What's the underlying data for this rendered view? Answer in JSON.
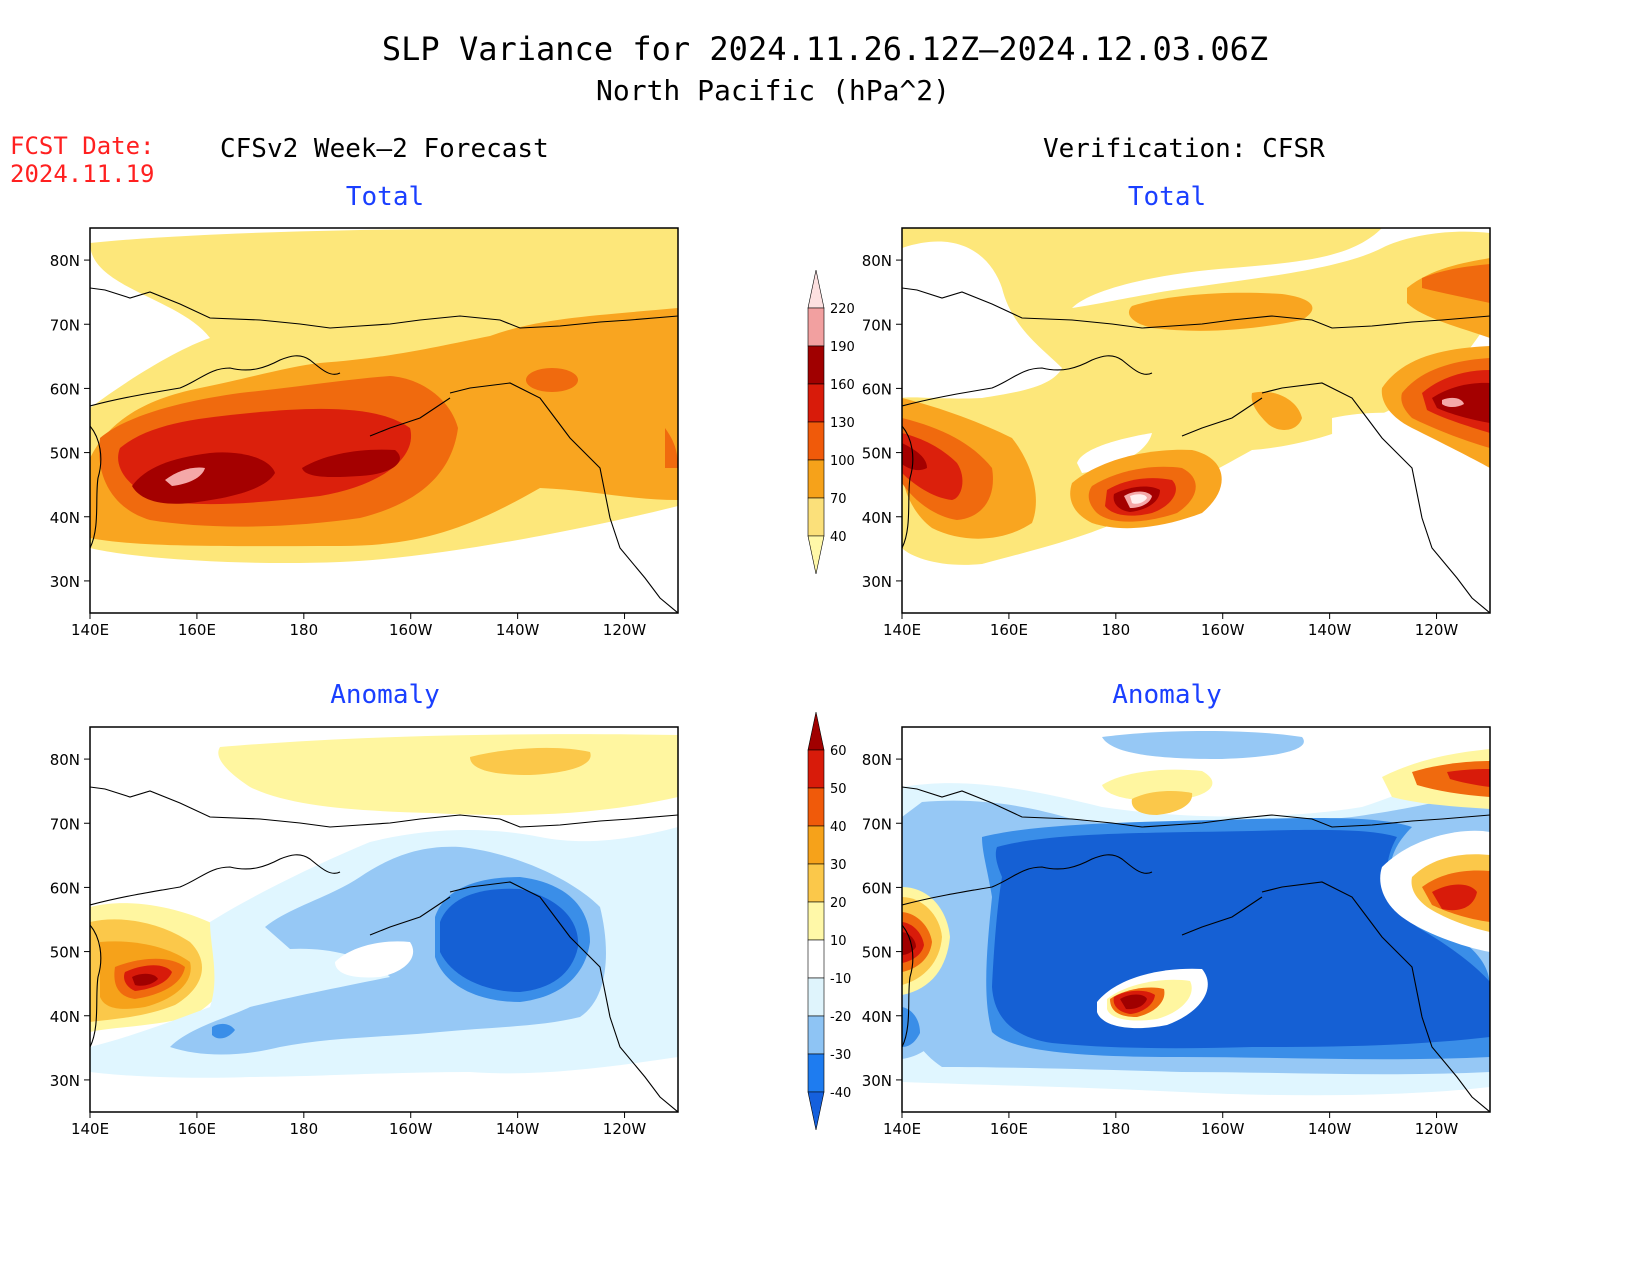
{
  "header": {
    "title": "SLP Variance for 2024.11.26.12Z–2024.12.03.06Z",
    "subtitle": "North Pacific (hPa^2)",
    "fcst_label": "FCST Date:",
    "fcst_date": "2024.11.19"
  },
  "columns": {
    "left": "CFSv2 Week–2 Forecast",
    "right": "Verification: CFSR"
  },
  "panels": {
    "total_label": "Total",
    "anomaly_label": "Anomaly"
  },
  "axes": {
    "lat_labels": [
      "80N",
      "70N",
      "60N",
      "50N",
      "40N",
      "30N"
    ],
    "lon_labels": [
      "140E",
      "160E",
      "180",
      "160W",
      "140W",
      "120W"
    ],
    "lat_range": [
      25,
      85
    ],
    "lon_range_east": [
      140,
      250
    ]
  },
  "colorbar_total": {
    "levels": [
      "40",
      "70",
      "100",
      "130",
      "160",
      "190",
      "220"
    ],
    "colors": [
      "#fff8a8",
      "#fbe07a",
      "#f6a21a",
      "#f05a0a",
      "#d81b0a",
      "#a00000",
      "#f2a0a0",
      "#fde0e0"
    ]
  },
  "colorbar_anomaly": {
    "levels": [
      "-40",
      "-30",
      "-20",
      "-10",
      "10",
      "20",
      "30",
      "40",
      "50",
      "60"
    ],
    "colors": [
      "#1560dd",
      "#1e7cf0",
      "#8ec4f4",
      "#dff4fc",
      "#ffffff",
      "#fff8a8",
      "#fbc84a",
      "#f6a21a",
      "#f05a0a",
      "#d81b0a",
      "#a00000"
    ]
  },
  "palette": {
    "t40": "#fde77a",
    "t70": "#f9a520",
    "t100": "#f06a0e",
    "t130": "#db200c",
    "t160": "#a40000",
    "t190": "#f4a8a8",
    "t220": "#fff0f0",
    "a_10": "#e0f6ff",
    "a_20": "#96c8f5",
    "a_30": "#3a8ee8",
    "a_40": "#1560d4",
    "a10": "#fff6a0",
    "a20": "#fbc84a",
    "a30": "#f6a21a",
    "a40": "#f06a0e",
    "a50": "#d81b0a",
    "a60": "#a00000"
  }
}
